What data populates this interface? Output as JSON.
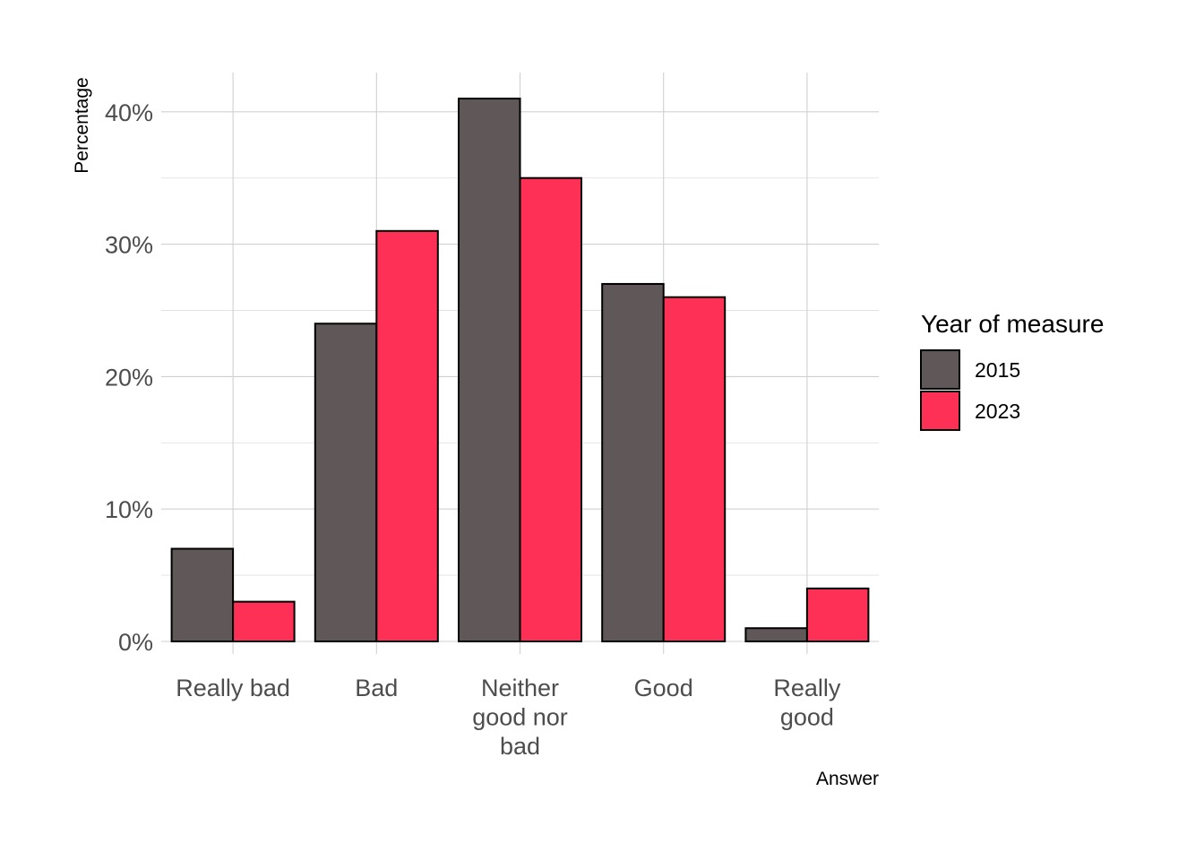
{
  "chart_data": {
    "type": "bar",
    "categories": [
      [
        "Really bad"
      ],
      [
        "Bad"
      ],
      [
        "Neither",
        "good nor",
        "bad"
      ],
      [
        "Good"
      ],
      [
        "Really",
        "good"
      ]
    ],
    "series": [
      {
        "name": "2015",
        "color": "#605858",
        "values": [
          7,
          24,
          41,
          27,
          1
        ]
      },
      {
        "name": "2023",
        "color": "#ff3055",
        "values": [
          3,
          31,
          35,
          26,
          4
        ]
      }
    ],
    "xlabel": "Answer",
    "ylabel": "Percentage",
    "ylim": [
      0,
      43.5
    ],
    "yticks": [
      0,
      10,
      20,
      30,
      40
    ],
    "ytick_labels": [
      "0%",
      "10%",
      "20%",
      "30%",
      "40%"
    ],
    "legend": {
      "title": "Year of measure",
      "position": "right"
    },
    "grid": true
  }
}
